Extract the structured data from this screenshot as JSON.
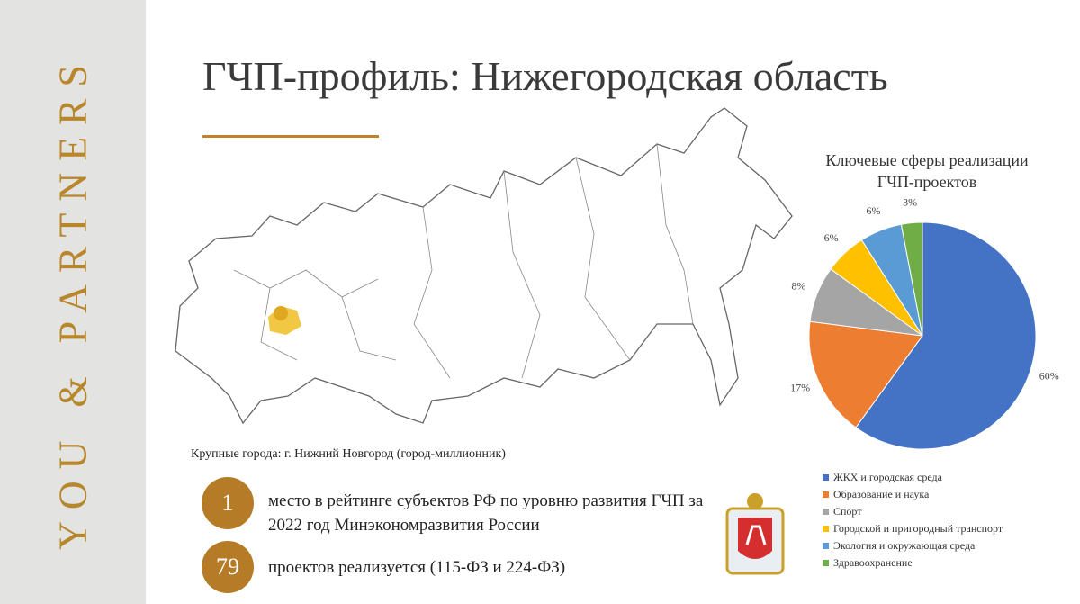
{
  "sidebar": {
    "brand": "YOU & PARTNERS"
  },
  "header": {
    "title": "ГЧП-профиль: Нижегородская область"
  },
  "map": {
    "caption": "Крупные города: г. Нижний Новгород (город-миллионник)"
  },
  "stats": [
    {
      "number": 1,
      "text": "место в рейтинге субъектов РФ по уровню развития ГЧП за 2022 год Минэкономразвития России"
    },
    {
      "number": 79,
      "text": "проектов реализуется (115-ФЗ и 224-ФЗ)"
    }
  ],
  "chart_data": {
    "type": "pie",
    "title": "Ключевые сферы реализации ГЧП-проектов",
    "categories": [
      "ЖКХ и городская среда",
      "Образование и наука",
      "Спорт",
      "Городской и пригородный транспорт",
      "Экология и окружающая среда",
      "Здравоохранение"
    ],
    "values": [
      60,
      17,
      8,
      6,
      6,
      3
    ],
    "value_labels": [
      "60%",
      "17%",
      "8%",
      "6%",
      "6%",
      "3%"
    ],
    "colors": [
      "#4472c4",
      "#ed7d31",
      "#a5a5a5",
      "#ffc000",
      "#5b9bd5",
      "#70ad47"
    ],
    "legend": "bottom"
  }
}
